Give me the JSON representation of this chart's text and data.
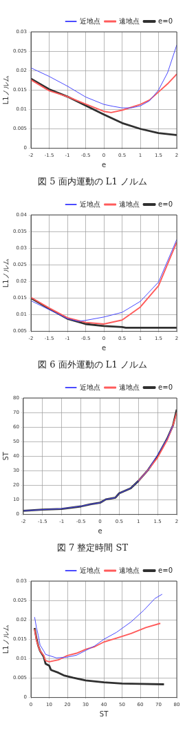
{
  "chart_data": [
    {
      "type": "line",
      "xlabel": "e",
      "ylabel": "L1ノルム",
      "annotations": [
        "図 5  面内運動の L1 ノルム"
      ],
      "xlim": [
        -2,
        2
      ],
      "xticks": [
        -2,
        -1.5,
        -1,
        -0.5,
        0,
        0.5,
        1,
        1.5,
        2
      ],
      "ylim": [
        0,
        0.03
      ],
      "yticks": [
        0,
        0.005,
        0.01,
        0.015,
        0.02,
        0.025,
        0.03
      ],
      "grid": true,
      "legend": "top right",
      "marker": "none",
      "line_style": "solid",
      "series": [
        {
          "name": "近地点",
          "color": "#4a4aff",
          "x": [
            -2,
            -1.5,
            -1,
            -0.5,
            0,
            0.25,
            0.5,
            0.75,
            1,
            1.25,
            1.5,
            1.75,
            2
          ],
          "values": [
            0.0207,
            0.0185,
            0.016,
            0.0132,
            0.0113,
            0.0108,
            0.0104,
            0.0104,
            0.0109,
            0.0122,
            0.015,
            0.0195,
            0.0266
          ]
        },
        {
          "name": "遠地点",
          "color": "#ff5a5a",
          "x": [
            -2,
            -1.5,
            -1,
            -0.5,
            0,
            0.2,
            0.5,
            1,
            1.25,
            1.5,
            1.75,
            2
          ],
          "values": [
            0.0176,
            0.0148,
            0.0133,
            0.0114,
            0.0095,
            0.0092,
            0.0098,
            0.0113,
            0.0124,
            0.0145,
            0.0166,
            0.0191
          ]
        },
        {
          "name": "e=0",
          "color": "#303030",
          "x": [
            -2,
            -1.5,
            -1,
            -0.5,
            0,
            0.5,
            1,
            1.5,
            2
          ],
          "values": [
            0.0179,
            0.0152,
            0.0133,
            0.011,
            0.0087,
            0.0065,
            0.005,
            0.0039,
            0.0034
          ]
        }
      ]
    },
    {
      "type": "line",
      "xlabel": "e",
      "ylabel": "L1ノルム",
      "annotations": [
        "図 6  面外運動の L1 ノルム"
      ],
      "xlim": [
        -2,
        2
      ],
      "xticks": [
        -2,
        -1.5,
        -1,
        -0.5,
        0,
        0.5,
        1,
        1.5,
        2
      ],
      "ylim": [
        0.005,
        0.04
      ],
      "yticks": [
        0.005,
        0.01,
        0.015,
        0.02,
        0.025,
        0.03,
        0.035,
        0.04
      ],
      "grid": true,
      "legend": "top right",
      "marker": "none",
      "line_style": "solid",
      "series": [
        {
          "name": "近地点",
          "color": "#4a4aff",
          "x": [
            -2,
            -1.5,
            -1,
            -0.7,
            -0.5,
            0,
            0.5,
            1,
            1.5,
            2
          ],
          "values": [
            0.0142,
            0.0115,
            0.0088,
            0.008,
            0.0083,
            0.0093,
            0.0107,
            0.014,
            0.0198,
            0.0326
          ]
        },
        {
          "name": "遠地点",
          "color": "#ff5a5a",
          "x": [
            -2,
            -1.5,
            -1,
            -0.5,
            0,
            0.5,
            1,
            1.5,
            2
          ],
          "values": [
            0.0152,
            0.012,
            0.0091,
            0.0077,
            0.0072,
            0.0084,
            0.0123,
            0.0187,
            0.0318
          ]
        },
        {
          "name": "e=0",
          "color": "#303030",
          "x": [
            -2,
            -1.5,
            -1,
            -0.5,
            0,
            0.5,
            0.6,
            1,
            2
          ],
          "values": [
            0.015,
            0.0118,
            0.0088,
            0.0072,
            0.0066,
            0.0063,
            0.0061,
            0.0061,
            0.0061
          ]
        }
      ]
    },
    {
      "type": "line",
      "xlabel": "e",
      "ylabel": "ST",
      "annotations": [
        "図 7  整定時間 ST"
      ],
      "xlim": [
        -2,
        2
      ],
      "xticks": [
        -2,
        -1.5,
        -1,
        -0.5,
        0,
        0.5,
        1,
        1.5,
        2
      ],
      "ylim": [
        0,
        80
      ],
      "yticks": [
        0,
        10,
        20,
        30,
        40,
        50,
        60,
        70,
        80
      ],
      "grid": true,
      "legend": "top right",
      "marker": "none",
      "line_style": "solid",
      "series": [
        {
          "name": "近地点",
          "color": "#4a4aff",
          "x": [
            -2,
            -1.5,
            -1,
            -0.5,
            -0.25,
            0,
            0.15,
            0.4,
            0.5,
            0.8,
            1,
            1.25,
            1.5,
            1.75,
            1.9
          ],
          "values": [
            2.5,
            3.3,
            3.9,
            5.6,
            7,
            8,
            10.3,
            11.5,
            14.5,
            18,
            23,
            30.5,
            41,
            52,
            61
          ]
        },
        {
          "name": "遠地点",
          "color": "#ff5a5a",
          "x": [
            1,
            1.25,
            1.5,
            1.75,
            1.9,
            2
          ],
          "values": [
            23,
            30.5,
            39,
            51,
            61,
            70
          ]
        },
        {
          "name": "e=0",
          "color": "#303030",
          "x": [
            -2,
            -1.5,
            -1,
            -0.5,
            -0.25,
            0,
            0.15,
            0.4,
            0.5,
            0.8,
            1,
            1.25,
            1.5,
            1.75,
            1.9,
            2
          ],
          "values": [
            2.5,
            3.3,
            3.8,
            5.5,
            7,
            8,
            10.3,
            11.5,
            14.5,
            18,
            23,
            30.5,
            40,
            52,
            61,
            72
          ]
        }
      ]
    },
    {
      "type": "line",
      "xlabel": "ST",
      "ylabel": "L1ノルム",
      "xlim": [
        0,
        80
      ],
      "xticks": [
        0,
        10,
        20,
        30,
        40,
        50,
        60,
        70,
        80
      ],
      "ylim": [
        0,
        0.03
      ],
      "yticks": [
        0,
        0.005,
        0.01,
        0.015,
        0.02,
        0.025,
        0.03
      ],
      "grid": true,
      "legend": "top right",
      "marker": "none",
      "line_style": "solid",
      "series": [
        {
          "name": "近地点",
          "color": "#4a4aff",
          "x": [
            2,
            3,
            4,
            5,
            7,
            8,
            10,
            14,
            20,
            25,
            30,
            35,
            40,
            47,
            55,
            62,
            68,
            72
          ],
          "values": [
            0.0207,
            0.018,
            0.016,
            0.0135,
            0.012,
            0.0111,
            0.0108,
            0.0102,
            0.0104,
            0.0109,
            0.0121,
            0.0133,
            0.015,
            0.0168,
            0.0195,
            0.0225,
            0.0255,
            0.0266
          ]
        },
        {
          "name": "遠地点",
          "color": "#ff5a5a",
          "x": [
            2,
            3,
            4,
            5,
            7,
            8,
            10,
            15,
            20,
            25,
            30,
            35,
            40,
            47,
            55,
            63,
            71
          ],
          "values": [
            0.0176,
            0.0148,
            0.0133,
            0.012,
            0.0108,
            0.0095,
            0.0092,
            0.0097,
            0.0108,
            0.0114,
            0.0124,
            0.0131,
            0.0143,
            0.0153,
            0.0165,
            0.018,
            0.0191
          ]
        },
        {
          "name": "e=0",
          "color": "#303030",
          "x": [
            2,
            3,
            4,
            5,
            7,
            8,
            10,
            11,
            15,
            18,
            23,
            30,
            40,
            50,
            60,
            73
          ],
          "values": [
            0.0179,
            0.0152,
            0.0133,
            0.012,
            0.0105,
            0.0087,
            0.0082,
            0.0071,
            0.0064,
            0.0057,
            0.0051,
            0.0044,
            0.0039,
            0.0036,
            0.0035,
            0.0034
          ]
        }
      ]
    }
  ]
}
